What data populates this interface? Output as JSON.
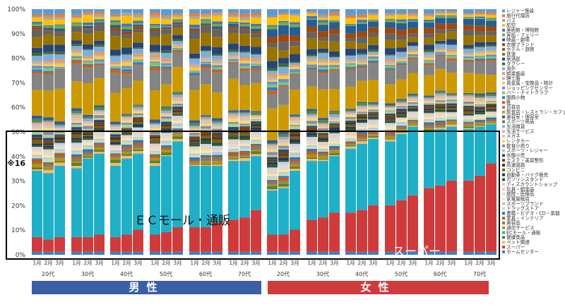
{
  "chart_data": {
    "type": "bar",
    "stacked": true,
    "normalized": true,
    "ylim": [
      0,
      100
    ],
    "y_ticks": [
      "0%",
      "10%",
      "20%",
      "30%",
      "40%",
      "50%",
      "60%",
      "70%",
      "80%",
      "90%",
      "100%"
    ],
    "months": [
      "1月",
      "2月",
      "3月"
    ],
    "groups": [
      {
        "gender": "男性",
        "age": "20代"
      },
      {
        "gender": "男性",
        "age": "30代"
      },
      {
        "gender": "男性",
        "age": "40代"
      },
      {
        "gender": "男性",
        "age": "50代"
      },
      {
        "gender": "男性",
        "age": "60代"
      },
      {
        "gender": "男性",
        "age": "70代"
      },
      {
        "gender": "女性",
        "age": "20代"
      },
      {
        "gender": "女性",
        "age": "30代"
      },
      {
        "gender": "女性",
        "age": "40代"
      },
      {
        "gender": "女性",
        "age": "50代"
      },
      {
        "gender": "女性",
        "age": "60代"
      },
      {
        "gender": "女性",
        "age": "70代"
      }
    ],
    "legend": [
      "レジャー施設",
      "旅行代理店",
      "バス",
      "航空",
      "美術館・博物館",
      "客船・フェリー",
      "映画・劇場",
      "衣服ブランド",
      "ホテル・旅館",
      "鉄道",
      "居酒屋",
      "タクシー",
      "海外",
      "娯楽施設",
      "紳士服",
      "貴金属・宝飾品・時計",
      "ショッピングセンター",
      "バー・ナイトクラブ",
      "服飾小物",
      "靴",
      "百貨店",
      "飲食店・レストラン・カフェ",
      "美容室・理容室",
      "スポーツ用品",
      "生活雑貨",
      "生活サービス",
      "メガネ",
      "レンタカー",
      "飲食小売り",
      "スポーツ・レジャー",
      "衣服小売",
      "エステ・美容整形",
      "高速道路",
      "コンビニ",
      "自動車・バイク販売",
      "ガソリンスタンド",
      "ディスカウントショップ",
      "玩具・娯楽品",
      "病院・医療品",
      "家電量販店",
      "スポーツブランド",
      "ドラッグストア",
      "書籍・ビデオ・CD・楽器",
      "家具・インテリア",
      "美容品",
      "通信サービス",
      "ECモール・通販",
      "健康食品",
      "ペット関連",
      "スーパー",
      "ホームセンター"
    ],
    "legend_colors": [
      "#5b9bd5",
      "#ed7d31",
      "#a5a5a5",
      "#ffc000",
      "#4472c4",
      "#70ad47",
      "#255e91",
      "#9e480e",
      "#636363",
      "#997300",
      "#264478",
      "#43682b",
      "#7cafdd",
      "#f1975a",
      "#b7b7b7",
      "#ffcd33",
      "#698ed0",
      "#8cc168",
      "#327dc2",
      "#d26012",
      "#848484",
      "#cc9a00",
      "#335aa1",
      "#5a8a39",
      "#8faadc",
      "#f4b183",
      "#c9c9c9",
      "#ffd966",
      "#8e86ae",
      "#a9d18e",
      "#1f4e79",
      "#843c0c",
      "#3a3a3a",
      "#7f6000",
      "#203864",
      "#375623",
      "#bdd7ee",
      "#f8cbad",
      "#dbdbdb",
      "#ffe699",
      "#b4c7e7",
      "#c5e0b4",
      "#2e75b6",
      "#c55a11",
      "#7b7b7b",
      "#bf8f00",
      "#1fb0c8",
      "#548235",
      "#f7b86e",
      "#cf3b3b",
      "#3a7fc4"
    ],
    "series": [
      {
        "name": "スーパー",
        "values": [
          [
            6,
            5,
            6
          ],
          [
            6,
            6,
            7
          ],
          [
            6,
            7,
            9
          ],
          [
            7,
            8,
            10
          ],
          [
            10,
            10,
            12
          ],
          [
            13,
            14,
            17
          ],
          [
            7,
            7,
            9
          ],
          [
            13,
            14,
            16
          ],
          [
            16,
            17,
            19
          ],
          [
            19,
            21,
            23
          ],
          [
            26,
            27,
            29
          ],
          [
            29,
            31,
            36
          ]
        ]
      },
      {
        "name": "ECモール・通販",
        "values": [
          [
            27,
            27,
            29
          ],
          [
            28,
            32,
            33
          ],
          [
            29,
            31,
            31
          ],
          [
            28,
            31,
            35
          ],
          [
            25,
            25,
            23
          ],
          [
            24,
            23,
            22
          ],
          [
            18,
            19,
            24
          ],
          [
            24,
            23,
            23
          ],
          [
            26,
            27,
            27
          ],
          [
            26,
            27,
            28
          ],
          [
            23,
            23,
            22
          ],
          [
            21,
            20,
            16
          ]
        ]
      }
    ],
    "annotations": [
      "ＥＣモール・通販",
      "スーパー",
      "※16"
    ],
    "gender_bands": [
      "男性",
      "女性"
    ]
  }
}
